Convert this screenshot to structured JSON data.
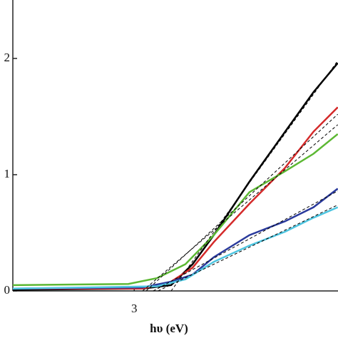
{
  "chart_data": {
    "type": "line",
    "x_label": "hυ (eV)",
    "xlim": [
      2.49,
      3.856
    ],
    "xticks": [
      3
    ],
    "ylim": [
      0,
      2.38
    ],
    "yticks": [
      0,
      1,
      2
    ],
    "series": [
      {
        "color": "#000000",
        "x": [
          2.49,
          3.035,
          3.155,
          3.245,
          3.334,
          3.484,
          3.634,
          3.753,
          3.855
        ],
        "values": [
          0.01,
          0.02,
          0.05,
          0.23,
          0.48,
          0.94,
          1.37,
          1.71,
          1.96
        ]
      },
      {
        "color": "#d42a2a",
        "x": [
          2.49,
          3.035,
          3.155,
          3.245,
          3.334,
          3.484,
          3.634,
          3.753,
          3.855
        ],
        "values": [
          0.02,
          0.02,
          0.08,
          0.2,
          0.42,
          0.75,
          1.06,
          1.37,
          1.58
        ]
      },
      {
        "color": "#5cb833",
        "x": [
          2.49,
          2.975,
          3.095,
          3.215,
          3.334,
          3.484,
          3.634,
          3.753,
          3.855
        ],
        "values": [
          0.05,
          0.06,
          0.11,
          0.23,
          0.48,
          0.85,
          1.03,
          1.18,
          1.35
        ]
      },
      {
        "color": "#2a3a9c",
        "x": [
          2.49,
          3.035,
          3.155,
          3.245,
          3.334,
          3.484,
          3.634,
          3.753,
          3.855
        ],
        "values": [
          0.02,
          0.03,
          0.08,
          0.14,
          0.29,
          0.48,
          0.6,
          0.72,
          0.88
        ]
      },
      {
        "color": "#4ec5e0",
        "x": [
          2.49,
          3.095,
          3.215,
          3.334,
          3.484,
          3.634,
          3.753,
          3.855
        ],
        "values": [
          0.02,
          0.04,
          0.1,
          0.25,
          0.39,
          0.51,
          0.63,
          0.72
        ]
      },
      {
        "color": "#000000",
        "dashed": true,
        "x": [
          3.155,
          3.855
        ],
        "values": [
          0,
          1.98
        ]
      },
      {
        "color": "#000000",
        "dashed": true,
        "x": [
          3.05,
          3.855
        ],
        "values": [
          0,
          1.52
        ]
      },
      {
        "color": "#000000",
        "dashed": true,
        "x": [
          3.035,
          3.855
        ],
        "values": [
          0,
          1.43
        ]
      },
      {
        "color": "#000000",
        "dashed": true,
        "x": [
          3.08,
          3.855
        ],
        "values": [
          0,
          0.86
        ]
      },
      {
        "color": "#000000",
        "dashed": true,
        "x": [
          3.1,
          3.855
        ],
        "values": [
          0,
          0.74
        ]
      }
    ]
  }
}
